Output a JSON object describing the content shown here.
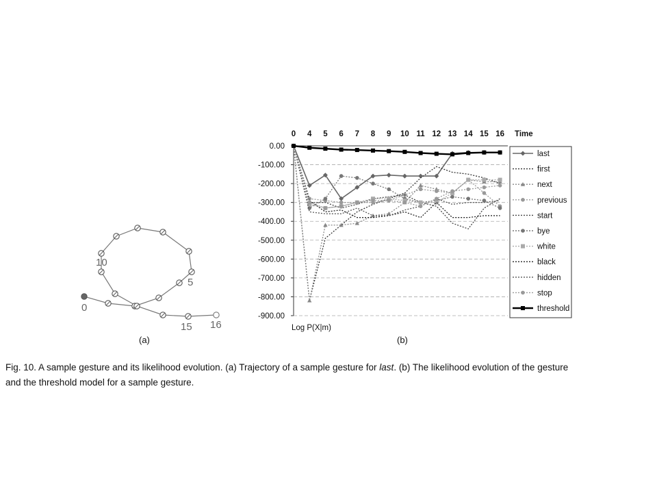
{
  "panel_a": {
    "label": "(a)",
    "point_labels": [
      "0",
      "5",
      "10",
      "15",
      "16"
    ]
  },
  "panel_b": {
    "label": "(b)"
  },
  "caption": {
    "line1_pre": "Fig. 10. A sample gesture and its likelihood evolution. (a) Trajectory of a sample gesture for ",
    "line1_italic": "last",
    "line1_post": ". (b) The likelihood evolution of the gesture",
    "line2": "and the threshold model for a sample gesture."
  },
  "chart_data": {
    "type": "line",
    "title": "",
    "x_label": "Time",
    "y_label": "Log P(X|m)",
    "x_ticks": [
      "0",
      "4",
      "5",
      "6",
      "7",
      "8",
      "9",
      "10",
      "11",
      "12",
      "13",
      "14",
      "15",
      "16"
    ],
    "y_ticks": [
      "0.00",
      "-100.00",
      "-200.00",
      "-300.00",
      "-400.00",
      "-500.00",
      "-600.00",
      "-700.00",
      "-800.00",
      "-900.00"
    ],
    "ylim": [
      -900,
      0
    ],
    "grid": "horizontal dashed",
    "legend_position": "right",
    "series": [
      {
        "name": "last",
        "color": "#666666",
        "style": "solid-diamond",
        "values": [
          0,
          -210,
          -155,
          -280,
          -220,
          -160,
          -155,
          -160,
          -160,
          -160,
          -40,
          -35,
          -35,
          -35
        ]
      },
      {
        "name": "first",
        "color": "#333333",
        "style": "dotted",
        "values": [
          0,
          -820,
          -490,
          -420,
          -350,
          -310,
          -280,
          -250,
          -170,
          -110,
          -140,
          -150,
          -170,
          -200
        ]
      },
      {
        "name": "next",
        "color": "#888888",
        "style": "dotted-triangle",
        "values": [
          0,
          -820,
          -420,
          -420,
          -410,
          -370,
          -360,
          -300,
          -210,
          -230,
          -250,
          -180,
          -190,
          -190
        ]
      },
      {
        "name": "previous",
        "color": "#999999",
        "style": "dotted-circle",
        "values": [
          0,
          -280,
          -290,
          -300,
          -300,
          -300,
          -290,
          -260,
          -230,
          -240,
          -250,
          -180,
          -250,
          -320
        ]
      },
      {
        "name": "start",
        "color": "#444444",
        "style": "dotted",
        "values": [
          0,
          -300,
          -300,
          -330,
          -310,
          -280,
          -270,
          -260,
          -300,
          -320,
          -410,
          -440,
          -330,
          -280
        ]
      },
      {
        "name": "bye",
        "color": "#777777",
        "style": "dotted-circle",
        "values": [
          0,
          -330,
          -280,
          -160,
          -170,
          -200,
          -230,
          -280,
          -300,
          -290,
          -270,
          -280,
          -290,
          -330
        ]
      },
      {
        "name": "white",
        "color": "#aaaaaa",
        "style": "dotted-square",
        "values": [
          0,
          -310,
          -330,
          -320,
          -300,
          -280,
          -280,
          -290,
          -300,
          -300,
          -250,
          -180,
          -180,
          -180
        ]
      },
      {
        "name": "black",
        "color": "#222222",
        "style": "dotted",
        "values": [
          0,
          -290,
          -350,
          -340,
          -380,
          -380,
          -370,
          -350,
          -380,
          -300,
          -380,
          -380,
          -370,
          -370
        ]
      },
      {
        "name": "hidden",
        "color": "#555555",
        "style": "dotted",
        "values": [
          0,
          -350,
          -360,
          -360,
          -330,
          -370,
          -370,
          -340,
          -320,
          -280,
          -310,
          -300,
          -300,
          -290
        ]
      },
      {
        "name": "stop",
        "color": "#9a9a9a",
        "style": "dotted-circle",
        "values": [
          0,
          -300,
          -330,
          -320,
          -300,
          -290,
          -290,
          -300,
          -320,
          -280,
          -240,
          -230,
          -220,
          -210
        ]
      },
      {
        "name": "threshold",
        "color": "#000000",
        "style": "solid-square",
        "values": [
          0,
          -10,
          -15,
          -20,
          -22,
          -25,
          -28,
          -32,
          -38,
          -42,
          -45,
          -38,
          -35,
          -35
        ]
      }
    ]
  }
}
